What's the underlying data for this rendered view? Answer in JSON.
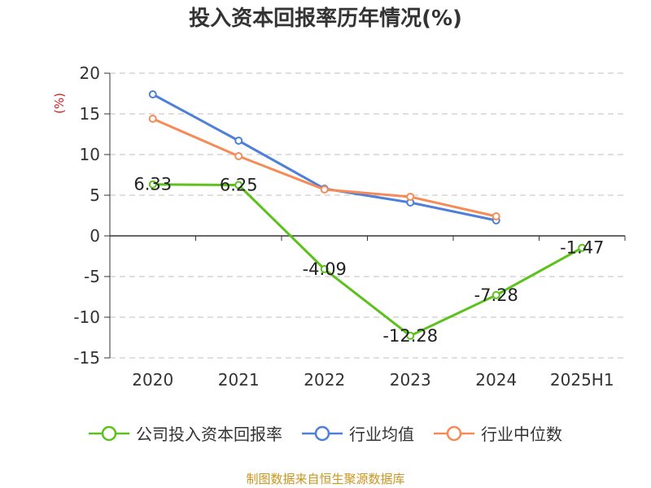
{
  "title": "投入资本回报率历年情况(%)",
  "source": "制图数据来自恒生聚源数据库",
  "chart_data": {
    "type": "line",
    "title": "投入资本回报率历年情况(%)",
    "y_unit": "(%)",
    "categories": [
      "2020",
      "2021",
      "2022",
      "2023",
      "2024",
      "2025H1"
    ],
    "ylim": [
      -15,
      20
    ],
    "yticks": [
      20,
      15,
      10,
      5,
      0,
      -5,
      -10,
      -15
    ],
    "grid": true,
    "legend_position": "bottom",
    "series": [
      {
        "name": "公司投入资本回报率",
        "color": "#5cc21b",
        "values": [
          6.33,
          6.25,
          -4.09,
          -12.28,
          -7.28,
          -1.47
        ],
        "labels": [
          "6.33",
          "6.25",
          "-4.09",
          "-12.28",
          "-7.28",
          "-1.47"
        ]
      },
      {
        "name": "行业均值",
        "color": "#4e7fd9",
        "values": [
          17.4,
          11.7,
          5.8,
          4.1,
          1.9,
          null
        ]
      },
      {
        "name": "行业中位数",
        "color": "#f68b57",
        "values": [
          14.4,
          9.8,
          5.7,
          4.8,
          2.4,
          null
        ]
      }
    ]
  }
}
